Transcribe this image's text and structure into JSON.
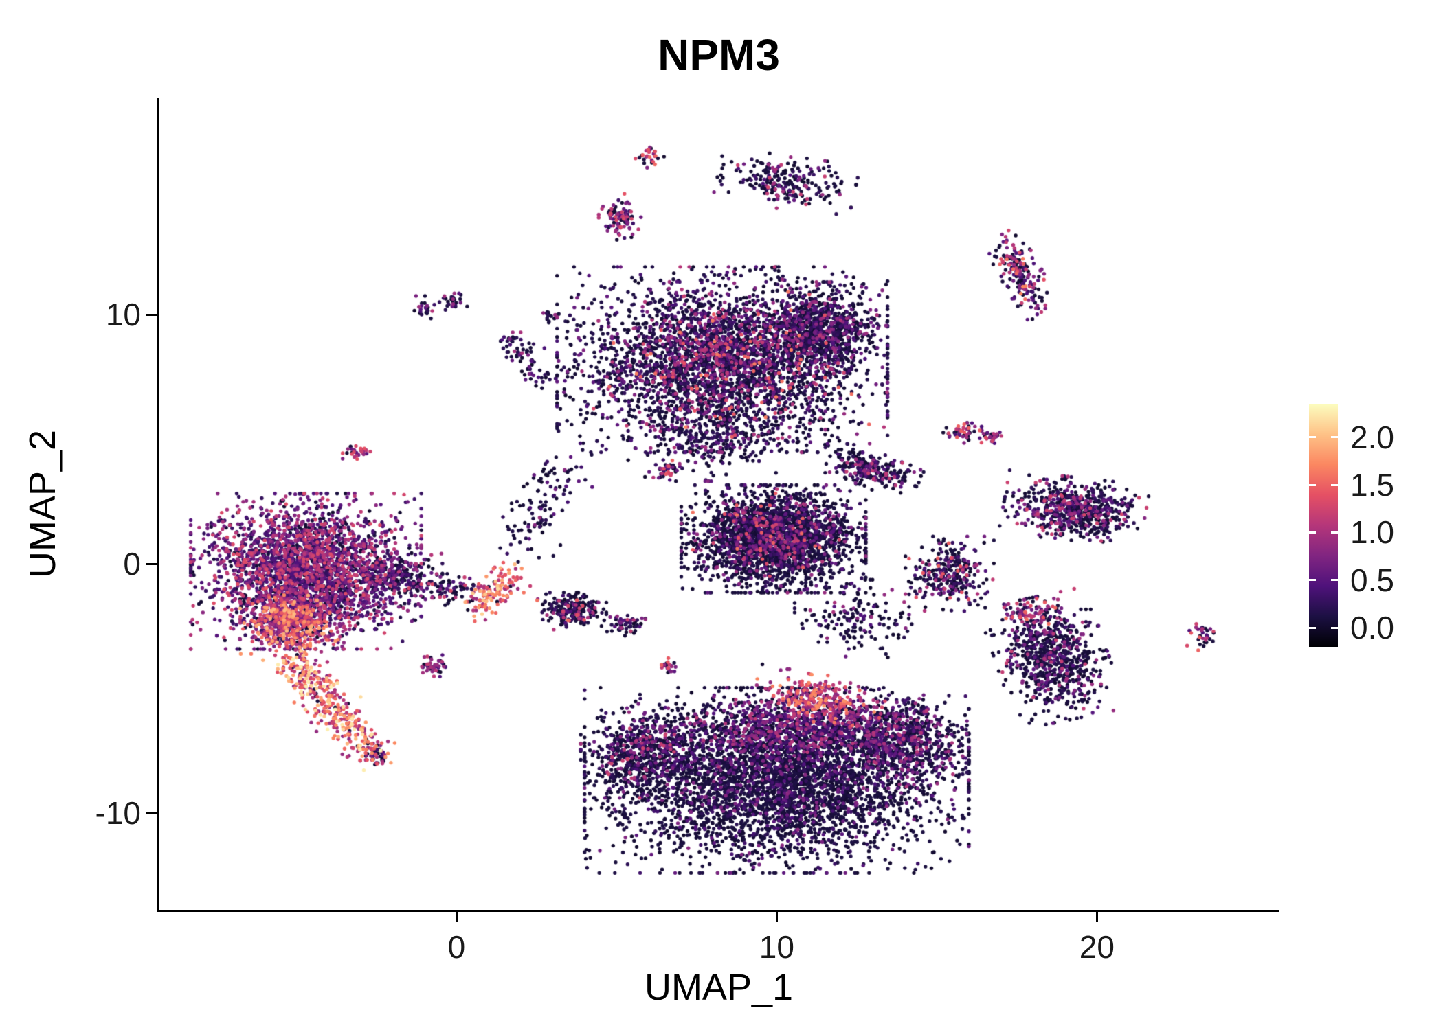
{
  "title": "NPM3",
  "axes": {
    "x": {
      "label": "UMAP_1",
      "min": -9.3,
      "max": 25.7,
      "ticks": [
        0,
        10,
        20
      ],
      "tick_labels": [
        "0",
        "10",
        "20"
      ]
    },
    "y": {
      "label": "UMAP_2",
      "min": -13.9,
      "max": 18.7,
      "ticks": [
        10,
        0,
        -10
      ],
      "tick_labels": [
        "10",
        "0",
        "-10"
      ]
    }
  },
  "legend": {
    "tick_values": [
      2.0,
      1.5,
      1.0,
      0.5,
      0.0
    ],
    "tick_labels": [
      "2.0",
      "1.5",
      "1.0",
      "0.5",
      "0.0"
    ],
    "vmin": -0.2,
    "vmax": 2.35,
    "colormap_name": "magma",
    "colormap": [
      [
        0,
        0,
        4
      ],
      [
        28,
        16,
        67
      ],
      [
        79,
        18,
        123
      ],
      [
        129,
        37,
        129
      ],
      [
        181,
        54,
        122
      ],
      [
        229,
        80,
        100
      ],
      [
        251,
        135,
        97
      ],
      [
        254,
        194,
        135
      ],
      [
        252,
        253,
        191
      ]
    ]
  },
  "chart_data": {
    "type": "scatter",
    "title": "NPM3",
    "xlabel": "UMAP_1",
    "ylabel": "UMAP_2",
    "xlim": [
      -9.3,
      25.7
    ],
    "ylim": [
      -13.9,
      18.7
    ],
    "color_scale": {
      "min": 0.0,
      "max": 2.3,
      "palette": "magma"
    },
    "clusters": [
      {
        "name": "top-small",
        "cx": 6.0,
        "cy": 16.4,
        "rx": 0.4,
        "ry": 0.5,
        "rot": 0,
        "n": 28,
        "p0": 0.25,
        "e0": 0.7,
        "e1": 1.6,
        "pow": 1.2
      },
      {
        "name": "top-right-archipelago",
        "cx": 10.3,
        "cy": 15.3,
        "rx": 1.8,
        "ry": 0.9,
        "rot": -10,
        "n": 230,
        "p0": 0.55,
        "e0": 0.2,
        "e1": 1.3,
        "pow": 2.4
      },
      {
        "name": "top-mid-small",
        "cx": 5.1,
        "cy": 13.9,
        "rx": 0.55,
        "ry": 0.8,
        "rot": 0,
        "n": 95,
        "p0": 0.3,
        "e0": 0.3,
        "e1": 1.5,
        "pow": 1.6
      },
      {
        "name": "upper-right-island",
        "cx": 17.6,
        "cy": 11.6,
        "rx": 0.6,
        "ry": 1.5,
        "rot": 20,
        "n": 180,
        "p0": 0.3,
        "e0": 0.3,
        "e1": 1.7,
        "pow": 1.6
      },
      {
        "name": "upper-left-tiny-a",
        "cx": -1.0,
        "cy": 10.3,
        "rx": 0.32,
        "ry": 0.38,
        "rot": 0,
        "n": 24,
        "p0": 0.5,
        "e0": 0.2,
        "e1": 1.2,
        "pow": 2
      },
      {
        "name": "upper-left-tiny-b",
        "cx": -0.1,
        "cy": 10.5,
        "rx": 0.36,
        "ry": 0.3,
        "rot": 0,
        "n": 26,
        "p0": 0.5,
        "e0": 0.2,
        "e1": 1.2,
        "pow": 2
      },
      {
        "name": "main-top-blob",
        "cx": 8.3,
        "cy": 8.2,
        "rx": 4.3,
        "ry": 3.1,
        "rot": 0,
        "n": 3300,
        "p0": 0.5,
        "e0": 0.15,
        "e1": 1.1,
        "pow": 2.6
      },
      {
        "name": "main-top-blob-right-lobe",
        "cx": 11.4,
        "cy": 9.4,
        "rx": 1.5,
        "ry": 1.6,
        "rot": 0,
        "n": 800,
        "p0": 0.5,
        "e0": 0.15,
        "e1": 1.0,
        "pow": 2.6
      },
      {
        "name": "main-top-blob-bright-speckles",
        "cx": 8.6,
        "cy": 7.8,
        "rx": 3.6,
        "ry": 2.6,
        "rot": 0,
        "n": 175,
        "p0": 0,
        "e0": 1.0,
        "e1": 1.7,
        "pow": 1.5
      },
      {
        "name": "main-top-blob-lower-fringe",
        "cx": 8.0,
        "cy": 5.0,
        "rx": 2.2,
        "ry": 1.4,
        "rot": 0,
        "n": 270,
        "p0": 0.55,
        "e0": 0.15,
        "e1": 1.0,
        "pow": 2.5
      },
      {
        "name": "left-streak",
        "type": "line",
        "x1": 1.6,
        "y1": 8.9,
        "x2": 2.9,
        "y2": 7.3,
        "w": 0.3,
        "n": 75,
        "p0": 0.5,
        "e0": 0.2,
        "e1": 1.0,
        "pow": 2
      },
      {
        "name": "left-streak-tiny",
        "cx": 2.9,
        "cy": 9.9,
        "rx": 0.25,
        "ry": 0.25,
        "rot": 0,
        "n": 16,
        "p0": 0.5,
        "e0": 0.2,
        "e1": 0.9,
        "pow": 2
      },
      {
        "name": "small-left-island",
        "cx": -3.1,
        "cy": 4.5,
        "rx": 0.38,
        "ry": 0.32,
        "rot": 0,
        "n": 32,
        "p0": 0.2,
        "e0": 0.5,
        "e1": 1.4,
        "pow": 1.2
      },
      {
        "name": "mid-right-pair-a",
        "cx": 15.8,
        "cy": 5.3,
        "rx": 0.5,
        "ry": 0.38,
        "rot": 0,
        "n": 48,
        "p0": 0.3,
        "e0": 0.4,
        "e1": 1.5,
        "pow": 1.3
      },
      {
        "name": "mid-right-pair-b",
        "cx": 16.7,
        "cy": 5.1,
        "rx": 0.32,
        "ry": 0.27,
        "rot": 0,
        "n": 26,
        "p0": 0.3,
        "e0": 0.4,
        "e1": 1.5,
        "pow": 1.3
      },
      {
        "name": "mid-diagonal-cluster",
        "cx": 12.9,
        "cy": 3.8,
        "rx": 1.35,
        "ry": 0.6,
        "rot": -25,
        "n": 270,
        "p0": 0.55,
        "e0": 0.2,
        "e1": 1.2,
        "pow": 2.5
      },
      {
        "name": "central-mass",
        "cx": 9.9,
        "cy": 1.0,
        "rx": 2.4,
        "ry": 1.8,
        "rot": 0,
        "n": 2400,
        "p0": 0.6,
        "e0": 0.12,
        "e1": 0.95,
        "pow": 2.8
      },
      {
        "name": "central-mass-bright-speckles",
        "cx": 9.9,
        "cy": 1.2,
        "rx": 2.1,
        "ry": 1.5,
        "rot": 0,
        "n": 90,
        "p0": 0,
        "e0": 1.0,
        "e1": 1.6,
        "pow": 1.5
      },
      {
        "name": "diag-bridge-upper",
        "type": "line",
        "x1": 1.8,
        "y1": 0.6,
        "x2": 3.6,
        "y2": 4.2,
        "w": 0.5,
        "n": 115,
        "p0": 0.6,
        "e0": 0.15,
        "e1": 1.0,
        "pow": 2.5
      },
      {
        "name": "small-mid-island",
        "cx": 6.6,
        "cy": 3.8,
        "rx": 0.42,
        "ry": 0.36,
        "rot": 0,
        "n": 42,
        "p0": 0.4,
        "e0": 0.3,
        "e1": 1.5,
        "pow": 1.6
      },
      {
        "name": "left-main-blob",
        "cx": -4.7,
        "cy": -0.3,
        "rx": 3.0,
        "ry": 2.6,
        "rot": 0,
        "n": 2800,
        "p0": 0.18,
        "e0": 0.25,
        "e1": 1.35,
        "pow": 1.8
      },
      {
        "name": "left-main-blob-hotspot",
        "cx": -5.2,
        "cy": -2.3,
        "rx": 1.3,
        "ry": 1.1,
        "rot": 0,
        "n": 540,
        "p0": 0.05,
        "e0": 0.7,
        "e1": 2.0,
        "pow": 1.5
      },
      {
        "name": "left-main-blob-right-fringe",
        "cx": -2.0,
        "cy": -0.5,
        "rx": 1.3,
        "ry": 1.0,
        "rot": 0,
        "n": 260,
        "p0": 0.4,
        "e0": 0.2,
        "e1": 1.2,
        "pow": 2.2
      },
      {
        "name": "left-bright-tail",
        "type": "line",
        "x1": -5.3,
        "y1": -3.7,
        "x2": -2.7,
        "y2": -7.6,
        "w": 0.35,
        "n": 390,
        "p0": 0.04,
        "e0": 0.8,
        "e1": 2.3,
        "pow": 1.3
      },
      {
        "name": "left-tail-tip",
        "cx": -2.5,
        "cy": -7.7,
        "rx": 0.4,
        "ry": 0.3,
        "rot": 0,
        "n": 40,
        "p0": 0.5,
        "e0": 0.2,
        "e1": 1.2,
        "pow": 2
      },
      {
        "name": "small-below-left",
        "cx": -0.7,
        "cy": -4.1,
        "rx": 0.42,
        "ry": 0.36,
        "rot": 0,
        "n": 46,
        "p0": 0.3,
        "e0": 0.4,
        "e1": 1.3,
        "pow": 1.6
      },
      {
        "name": "bright-streak-center-left",
        "type": "line",
        "x1": 0.7,
        "y1": -1.8,
        "x2": 1.7,
        "y2": -0.5,
        "w": 0.3,
        "n": 135,
        "p0": 0.05,
        "e0": 0.9,
        "e1": 2.2,
        "pow": 1.2
      },
      {
        "name": "sparse-bridge-left",
        "cx": -0.2,
        "cy": -1.0,
        "rx": 1.0,
        "ry": 0.55,
        "rot": 0,
        "n": 70,
        "p0": 0.5,
        "e0": 0.2,
        "e1": 1.4,
        "pow": 2
      },
      {
        "name": "center-small-cluster",
        "cx": 3.6,
        "cy": -1.9,
        "rx": 0.9,
        "ry": 0.62,
        "rot": 0,
        "n": 210,
        "p0": 0.55,
        "e0": 0.2,
        "e1": 1.6,
        "pow": 2.5
      },
      {
        "name": "center-small-cluster-b",
        "cx": 5.3,
        "cy": -2.4,
        "rx": 0.5,
        "ry": 0.42,
        "rot": 0,
        "n": 60,
        "p0": 0.5,
        "e0": 0.2,
        "e1": 1.2,
        "pow": 2
      },
      {
        "name": "tiny-center",
        "cx": 6.6,
        "cy": -4.1,
        "rx": 0.3,
        "ry": 0.3,
        "rot": 0,
        "n": 22,
        "p0": 0.3,
        "e0": 0.5,
        "e1": 1.5,
        "pow": 1.2
      },
      {
        "name": "bottom-main-mass",
        "cx": 10.0,
        "cy": -8.7,
        "rx": 5.0,
        "ry": 3.1,
        "rot": 0,
        "n": 4000,
        "p0": 0.62,
        "e0": 0.1,
        "e1": 0.85,
        "pow": 3
      },
      {
        "name": "bottom-mass-purple-band",
        "cx": 10.6,
        "cy": -6.6,
        "rx": 3.4,
        "ry": 1.3,
        "rot": 0,
        "n": 950,
        "p0": 0.3,
        "e0": 0.3,
        "e1": 1.15,
        "pow": 2
      },
      {
        "name": "bottom-mass-bright-streak",
        "cx": 11.3,
        "cy": -5.4,
        "rx": 1.7,
        "ry": 0.8,
        "rot": -15,
        "n": 240,
        "p0": 0.05,
        "e0": 0.8,
        "e1": 1.8,
        "pow": 1.4
      },
      {
        "name": "bottom-mass-left-lobe",
        "cx": 5.8,
        "cy": -7.6,
        "rx": 1.6,
        "ry": 1.5,
        "rot": 0,
        "n": 540,
        "p0": 0.5,
        "e0": 0.2,
        "e1": 1.3,
        "pow": 2.2
      },
      {
        "name": "bottom-mass-right-lobe",
        "cx": 13.9,
        "cy": -7.1,
        "rx": 1.7,
        "ry": 1.6,
        "rot": 0,
        "n": 660,
        "p0": 0.45,
        "e0": 0.2,
        "e1": 1.1,
        "pow": 2.4
      },
      {
        "name": "sparse-bridge-center",
        "cx": 12.6,
        "cy": -2.2,
        "rx": 1.7,
        "ry": 1.3,
        "rot": 0,
        "n": 160,
        "p0": 0.6,
        "e0": 0.15,
        "e1": 1.0,
        "pow": 2.5
      },
      {
        "name": "right-cluster-upper",
        "cx": 19.3,
        "cy": 2.2,
        "rx": 1.85,
        "ry": 1.05,
        "rot": -8,
        "n": 640,
        "p0": 0.5,
        "e0": 0.2,
        "e1": 1.3,
        "pow": 2.4
      },
      {
        "name": "right-cluster-mid",
        "cx": 15.4,
        "cy": -0.4,
        "rx": 1.15,
        "ry": 1.25,
        "rot": 0,
        "n": 290,
        "p0": 0.55,
        "e0": 0.2,
        "e1": 1.5,
        "pow": 2.5
      },
      {
        "name": "right-cluster-lower",
        "cx": 18.6,
        "cy": -3.8,
        "rx": 1.45,
        "ry": 2.1,
        "rot": 15,
        "n": 740,
        "p0": 0.55,
        "e0": 0.15,
        "e1": 1.2,
        "pow": 2.6
      },
      {
        "name": "right-cluster-lower-bright-edge",
        "cx": 17.9,
        "cy": -2.0,
        "rx": 0.85,
        "ry": 0.5,
        "rot": 0,
        "n": 70,
        "p0": 0.2,
        "e0": 0.6,
        "e1": 1.6,
        "pow": 1.5
      },
      {
        "name": "far-right-tiny",
        "cx": 23.3,
        "cy": -2.9,
        "rx": 0.42,
        "ry": 0.48,
        "rot": 0,
        "n": 36,
        "p0": 0.3,
        "e0": 0.4,
        "e1": 1.5,
        "pow": 1.3
      }
    ]
  }
}
